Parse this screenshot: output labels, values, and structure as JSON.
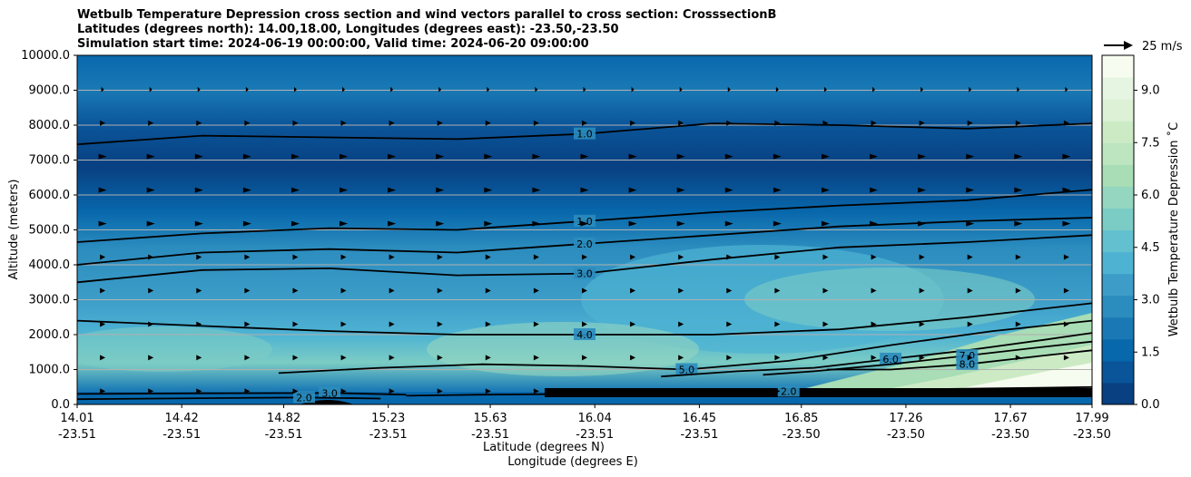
{
  "chart_data": {
    "type": "contour",
    "title_lines": [
      "Wetbulb Temperature Depression cross section and wind vectors parallel to cross section: CrosssectionB",
      "Latitudes (degrees north): 14.00,18.00, Longitudes (degrees east): -23.50,-23.50",
      "Simulation start time: 2024-06-19 00:00:00, Valid time: 2024-06-20 09:00:00"
    ],
    "ylabel": "Altitude (meters)",
    "xlabel_lat": "Latitude (degrees N)",
    "xlabel_lon": "Longitude (degrees E)",
    "ylim": [
      0,
      10000
    ],
    "yticks": [
      "0.0",
      "1000.0",
      "2000.0",
      "3000.0",
      "4000.0",
      "5000.0",
      "6000.0",
      "7000.0",
      "8000.0",
      "9000.0",
      "10000.0"
    ],
    "ytick_values": [
      0,
      1000,
      2000,
      3000,
      4000,
      5000,
      6000,
      7000,
      8000,
      9000,
      10000
    ],
    "xlim": [
      14.01,
      17.99
    ],
    "xticks": [
      {
        "lat": "14.01",
        "lon": "-23.51",
        "v": 14.01
      },
      {
        "lat": "14.42",
        "lon": "-23.51",
        "v": 14.42
      },
      {
        "lat": "14.82",
        "lon": "-23.51",
        "v": 14.82
      },
      {
        "lat": "15.23",
        "lon": "-23.51",
        "v": 15.23
      },
      {
        "lat": "15.63",
        "lon": "-23.51",
        "v": 15.63
      },
      {
        "lat": "16.04",
        "lon": "-23.51",
        "v": 16.04
      },
      {
        "lat": "16.45",
        "lon": "-23.51",
        "v": 16.45
      },
      {
        "lat": "16.85",
        "lon": "-23.50",
        "v": 16.85
      },
      {
        "lat": "17.26",
        "lon": "-23.50",
        "v": 17.26
      },
      {
        "lat": "17.67",
        "lon": "-23.50",
        "v": 17.67
      },
      {
        "lat": "17.99",
        "lon": "-23.50",
        "v": 17.99
      }
    ],
    "colorbar": {
      "label": "Wetbulb Temperature Depression ˚C",
      "range": [
        0,
        10
      ],
      "ticks": [
        "0.0",
        "1.5",
        "3.0",
        "4.5",
        "6.0",
        "7.5",
        "9.0"
      ],
      "tick_values": [
        0,
        1.5,
        3.0,
        4.5,
        6.0,
        7.5,
        9.0
      ],
      "colors": [
        "#084081",
        "#0a5599",
        "#0868ac",
        "#1a79b5",
        "#2b8cbe",
        "#3d9dc8",
        "#4eb3d3",
        "#63c1cf",
        "#7bccc4",
        "#94d6bf",
        "#a8ddb5",
        "#bde5c0",
        "#ccebc5",
        "#dcf1d6",
        "#e6f5e1",
        "#f7fcf0"
      ]
    },
    "wind_key": {
      "label": "25 m/s",
      "speed": 25
    },
    "grid": "horizontal",
    "contour_lines": [
      {
        "value": 1.0,
        "label": "1.0",
        "x": [
          14.01,
          14.5,
          15.0,
          15.5,
          16.0,
          16.5,
          17.0,
          17.5,
          17.99
        ],
        "y": [
          7450,
          7700,
          7650,
          7600,
          7750,
          8050,
          8000,
          7900,
          8050
        ]
      },
      {
        "value": 1.0,
        "label": "1.0",
        "x": [
          14.01,
          14.5,
          15.0,
          15.5,
          16.0,
          16.5,
          17.0,
          17.5,
          17.99
        ],
        "y": [
          4650,
          4900,
          5050,
          5000,
          5250,
          5500,
          5700,
          5850,
          6150
        ]
      },
      {
        "value": 2.0,
        "label": "2.0",
        "x": [
          14.01,
          14.5,
          15.0,
          15.5,
          16.0,
          16.5,
          17.0,
          17.5,
          17.99
        ],
        "y": [
          4000,
          4350,
          4450,
          4350,
          4600,
          4850,
          5100,
          5250,
          5350
        ]
      },
      {
        "value": 3.0,
        "label": "3.0",
        "x": [
          14.01,
          14.5,
          15.0,
          15.5,
          16.0,
          16.5,
          17.0,
          17.5,
          17.99
        ],
        "y": [
          3500,
          3850,
          3900,
          3700,
          3750,
          4150,
          4500,
          4650,
          4850
        ]
      },
      {
        "value": 4.0,
        "label": "4.0",
        "x": [
          14.01,
          14.5,
          15.0,
          15.5,
          16.0,
          16.5,
          17.0,
          17.5,
          17.99
        ],
        "y": [
          2400,
          2250,
          2100,
          2000,
          2000,
          2000,
          2150,
          2500,
          2900
        ]
      },
      {
        "value": 5.0,
        "label": "5.0",
        "x": [
          14.8,
          15.2,
          15.6,
          16.0,
          16.4,
          16.8,
          17.2,
          17.6,
          17.99
        ],
        "y": [
          900,
          1050,
          1150,
          1100,
          1000,
          1250,
          1700,
          2100,
          2400
        ]
      },
      {
        "value": 6.0,
        "label": "6.0",
        "x": [
          16.3,
          16.6,
          16.9,
          17.2,
          17.5,
          17.8,
          17.99
        ],
        "y": [
          800,
          950,
          1050,
          1300,
          1550,
          1850,
          2050
        ]
      },
      {
        "value": 7.0,
        "label": "7.0",
        "x": [
          16.7,
          16.9,
          17.2,
          17.5,
          17.8,
          17.99
        ],
        "y": [
          850,
          950,
          1150,
          1400,
          1650,
          1800
        ]
      },
      {
        "value": 8.0,
        "label": "8.0",
        "x": [
          16.95,
          17.2,
          17.5,
          17.8,
          17.99
        ],
        "y": [
          1000,
          1000,
          1150,
          1400,
          1550
        ]
      },
      {
        "value": 2.0,
        "label": "2.0",
        "x": [
          15.3,
          15.6,
          16.0,
          16.4,
          16.8,
          17.2,
          17.6,
          17.99
        ],
        "y": [
          250,
          280,
          300,
          320,
          380,
          420,
          460,
          500
        ]
      },
      {
        "value": 3.0,
        "label": "3.0",
        "x": [
          14.01,
          14.5,
          15.0,
          15.3
        ],
        "y": [
          300,
          320,
          330,
          280
        ]
      },
      {
        "value": 2.0,
        "label": "2.0",
        "x": [
          14.01,
          14.5,
          14.9,
          15.2
        ],
        "y": [
          150,
          180,
          200,
          170
        ]
      }
    ]
  }
}
